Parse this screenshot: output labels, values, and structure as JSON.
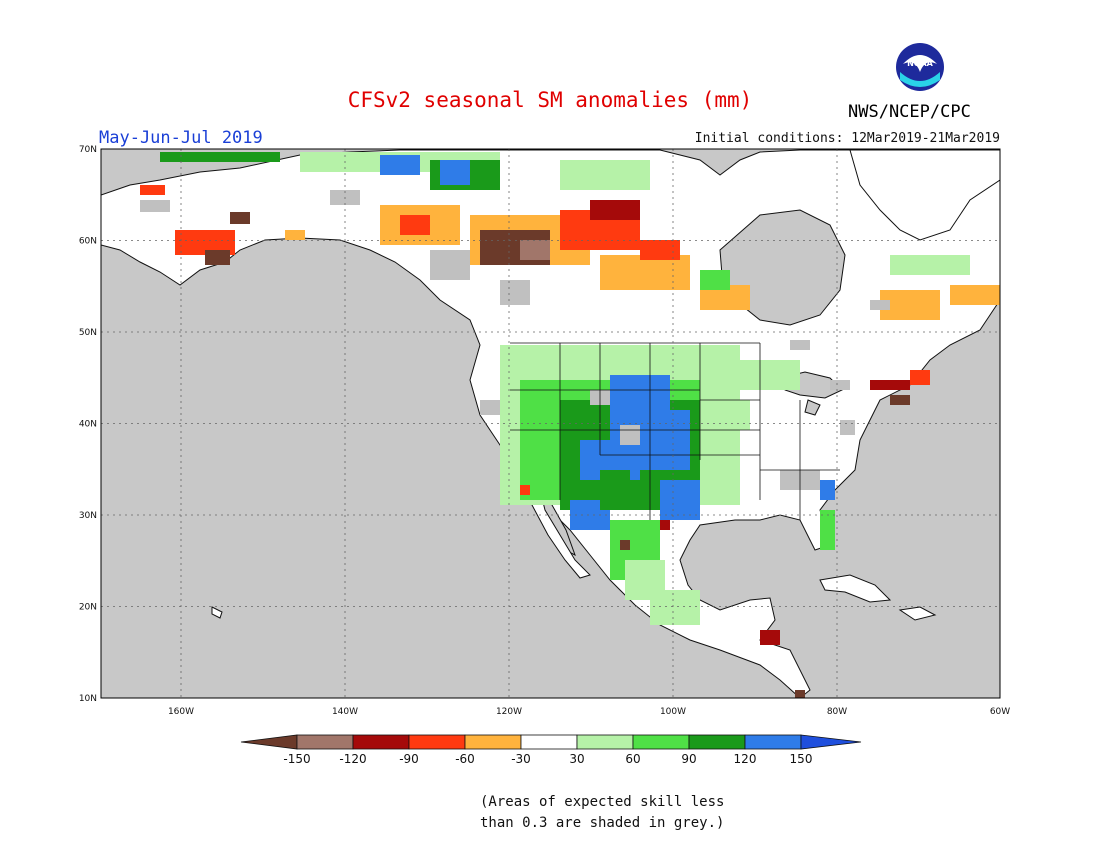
{
  "header": {
    "title": "CFSv2 seasonal SM anomalies (mm)",
    "period": "May-Jun-Jul 2019",
    "initial_conditions": "Initial conditions: 12Mar2019-21Mar2019",
    "agency": "NWS/NCEP/CPC",
    "logo_text": "NOAA"
  },
  "map": {
    "lat_labels": [
      "70N",
      "60N",
      "50N",
      "40N",
      "30N",
      "20N",
      "10N"
    ],
    "lon_labels": [
      "160W",
      "140W",
      "120W",
      "100W",
      "80W",
      "60W"
    ],
    "ocean_color": "#c8c8c8",
    "land_color": "#ffffff",
    "skill_mask_color": "#c0c0c0"
  },
  "legend": {
    "tick_labels": [
      "-150",
      "-120",
      "-90",
      "-60",
      "-30",
      "30",
      "60",
      "90",
      "120",
      "150"
    ],
    "bins": [
      {
        "color": "#6b3a2a"
      },
      {
        "color": "#a1766a"
      },
      {
        "color": "#a50a0a"
      },
      {
        "color": "#ff3a10"
      },
      {
        "color": "#ffb33d"
      },
      {
        "color": "#ffffff"
      },
      {
        "color": "#b6f2a8"
      },
      {
        "color": "#4fe046"
      },
      {
        "color": "#1a9a1a"
      },
      {
        "color": "#2f7ce8"
      },
      {
        "color": "#1f4fdd"
      }
    ]
  },
  "note": {
    "line1": "(Areas of expected skill less",
    "line2": "than 0.3 are shaded in grey.)"
  }
}
